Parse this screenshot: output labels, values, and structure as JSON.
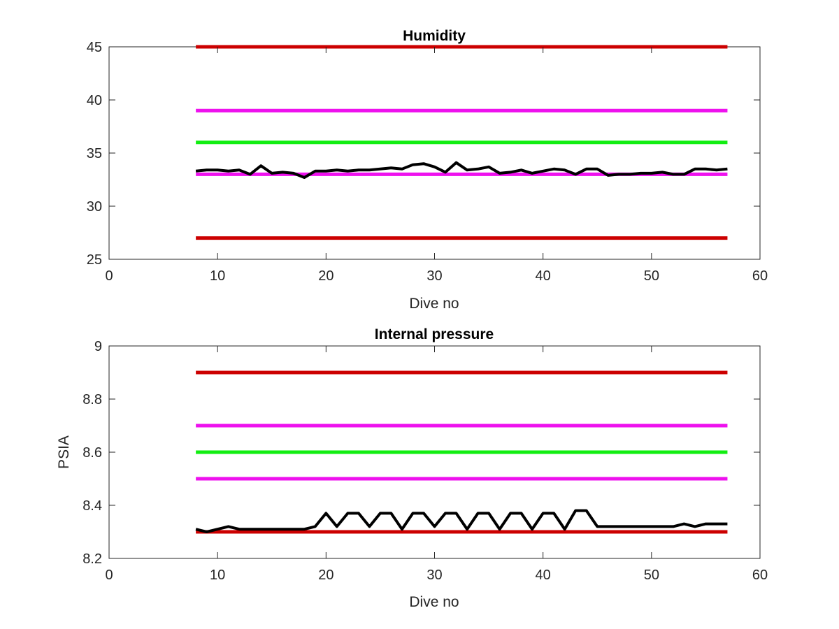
{
  "chart_data": [
    {
      "type": "line",
      "title": "Humidity",
      "xlabel": "Dive no",
      "ylabel": "",
      "xlim": [
        0,
        60
      ],
      "ylim": [
        25,
        45
      ],
      "xticks": [
        0,
        10,
        20,
        30,
        40,
        50,
        60
      ],
      "yticks": [
        25,
        30,
        35,
        40,
        45
      ],
      "xtick_labels": [
        "0",
        "10",
        "20",
        "30",
        "40",
        "50",
        "60"
      ],
      "ytick_labels": [
        "25",
        "30",
        "35",
        "40",
        "45"
      ],
      "grid": false,
      "threshold_lines": [
        {
          "y": 45,
          "x_range": [
            8,
            57
          ],
          "color": "#cc0000"
        },
        {
          "y": 39,
          "x_range": [
            8,
            57
          ],
          "color": "#ee11ee"
        },
        {
          "y": 36,
          "x_range": [
            8,
            57
          ],
          "color": "#11ee11"
        },
        {
          "y": 33,
          "x_range": [
            8,
            57
          ],
          "color": "#ee11ee"
        },
        {
          "y": 27,
          "x_range": [
            8,
            57
          ],
          "color": "#cc0000"
        }
      ],
      "series": [
        {
          "color": "#000000",
          "x": [
            8,
            9,
            10,
            11,
            12,
            13,
            14,
            15,
            16,
            17,
            18,
            19,
            20,
            21,
            22,
            23,
            24,
            25,
            26,
            27,
            28,
            29,
            30,
            31,
            32,
            33,
            34,
            35,
            36,
            37,
            38,
            39,
            40,
            41,
            42,
            43,
            44,
            45,
            46,
            47,
            48,
            49,
            50,
            51,
            52,
            53,
            54,
            55,
            56,
            57
          ],
          "y": [
            33.3,
            33.4,
            33.4,
            33.3,
            33.4,
            33.0,
            33.8,
            33.1,
            33.2,
            33.1,
            32.7,
            33.3,
            33.3,
            33.4,
            33.3,
            33.4,
            33.4,
            33.5,
            33.6,
            33.5,
            33.9,
            34.0,
            33.7,
            33.2,
            34.1,
            33.4,
            33.5,
            33.7,
            33.1,
            33.2,
            33.4,
            33.1,
            33.3,
            33.5,
            33.4,
            33.0,
            33.5,
            33.5,
            32.9,
            33.0,
            33.0,
            33.1,
            33.1,
            33.2,
            33.0,
            33.0,
            33.5,
            33.5,
            33.4,
            33.5
          ]
        }
      ]
    },
    {
      "type": "line",
      "title": "Internal pressure",
      "xlabel": "Dive no",
      "ylabel": "PSIA",
      "xlim": [
        0,
        60
      ],
      "ylim": [
        8.2,
        9.0
      ],
      "xticks": [
        0,
        10,
        20,
        30,
        40,
        50,
        60
      ],
      "yticks": [
        8.2,
        8.4,
        8.6,
        8.8,
        9.0
      ],
      "xtick_labels": [
        "0",
        "10",
        "20",
        "30",
        "40",
        "50",
        "60"
      ],
      "ytick_labels": [
        "8.2",
        "8.4",
        "8.6",
        "8.8",
        "9"
      ],
      "grid": false,
      "threshold_lines": [
        {
          "y": 8.9,
          "x_range": [
            8,
            57
          ],
          "color": "#cc0000"
        },
        {
          "y": 8.7,
          "x_range": [
            8,
            57
          ],
          "color": "#ee11ee"
        },
        {
          "y": 8.6,
          "x_range": [
            8,
            57
          ],
          "color": "#11ee11"
        },
        {
          "y": 8.5,
          "x_range": [
            8,
            57
          ],
          "color": "#ee11ee"
        },
        {
          "y": 8.3,
          "x_range": [
            8,
            57
          ],
          "color": "#cc0000"
        }
      ],
      "series": [
        {
          "color": "#000000",
          "x": [
            8,
            9,
            10,
            11,
            12,
            13,
            14,
            15,
            16,
            17,
            18,
            19,
            20,
            21,
            22,
            23,
            24,
            25,
            26,
            27,
            28,
            29,
            30,
            31,
            32,
            33,
            34,
            35,
            36,
            37,
            38,
            39,
            40,
            41,
            42,
            43,
            44,
            45,
            46,
            47,
            48,
            49,
            50,
            51,
            52,
            53,
            54,
            55,
            56,
            57
          ],
          "y": [
            8.31,
            8.3,
            8.31,
            8.32,
            8.31,
            8.31,
            8.31,
            8.31,
            8.31,
            8.31,
            8.31,
            8.32,
            8.37,
            8.32,
            8.37,
            8.37,
            8.32,
            8.37,
            8.37,
            8.31,
            8.37,
            8.37,
            8.32,
            8.37,
            8.37,
            8.31,
            8.37,
            8.37,
            8.31,
            8.37,
            8.37,
            8.31,
            8.37,
            8.37,
            8.31,
            8.38,
            8.38,
            8.32,
            8.32,
            8.32,
            8.32,
            8.32,
            8.32,
            8.32,
            8.32,
            8.33,
            8.32,
            8.33,
            8.33,
            8.33
          ]
        }
      ]
    }
  ]
}
